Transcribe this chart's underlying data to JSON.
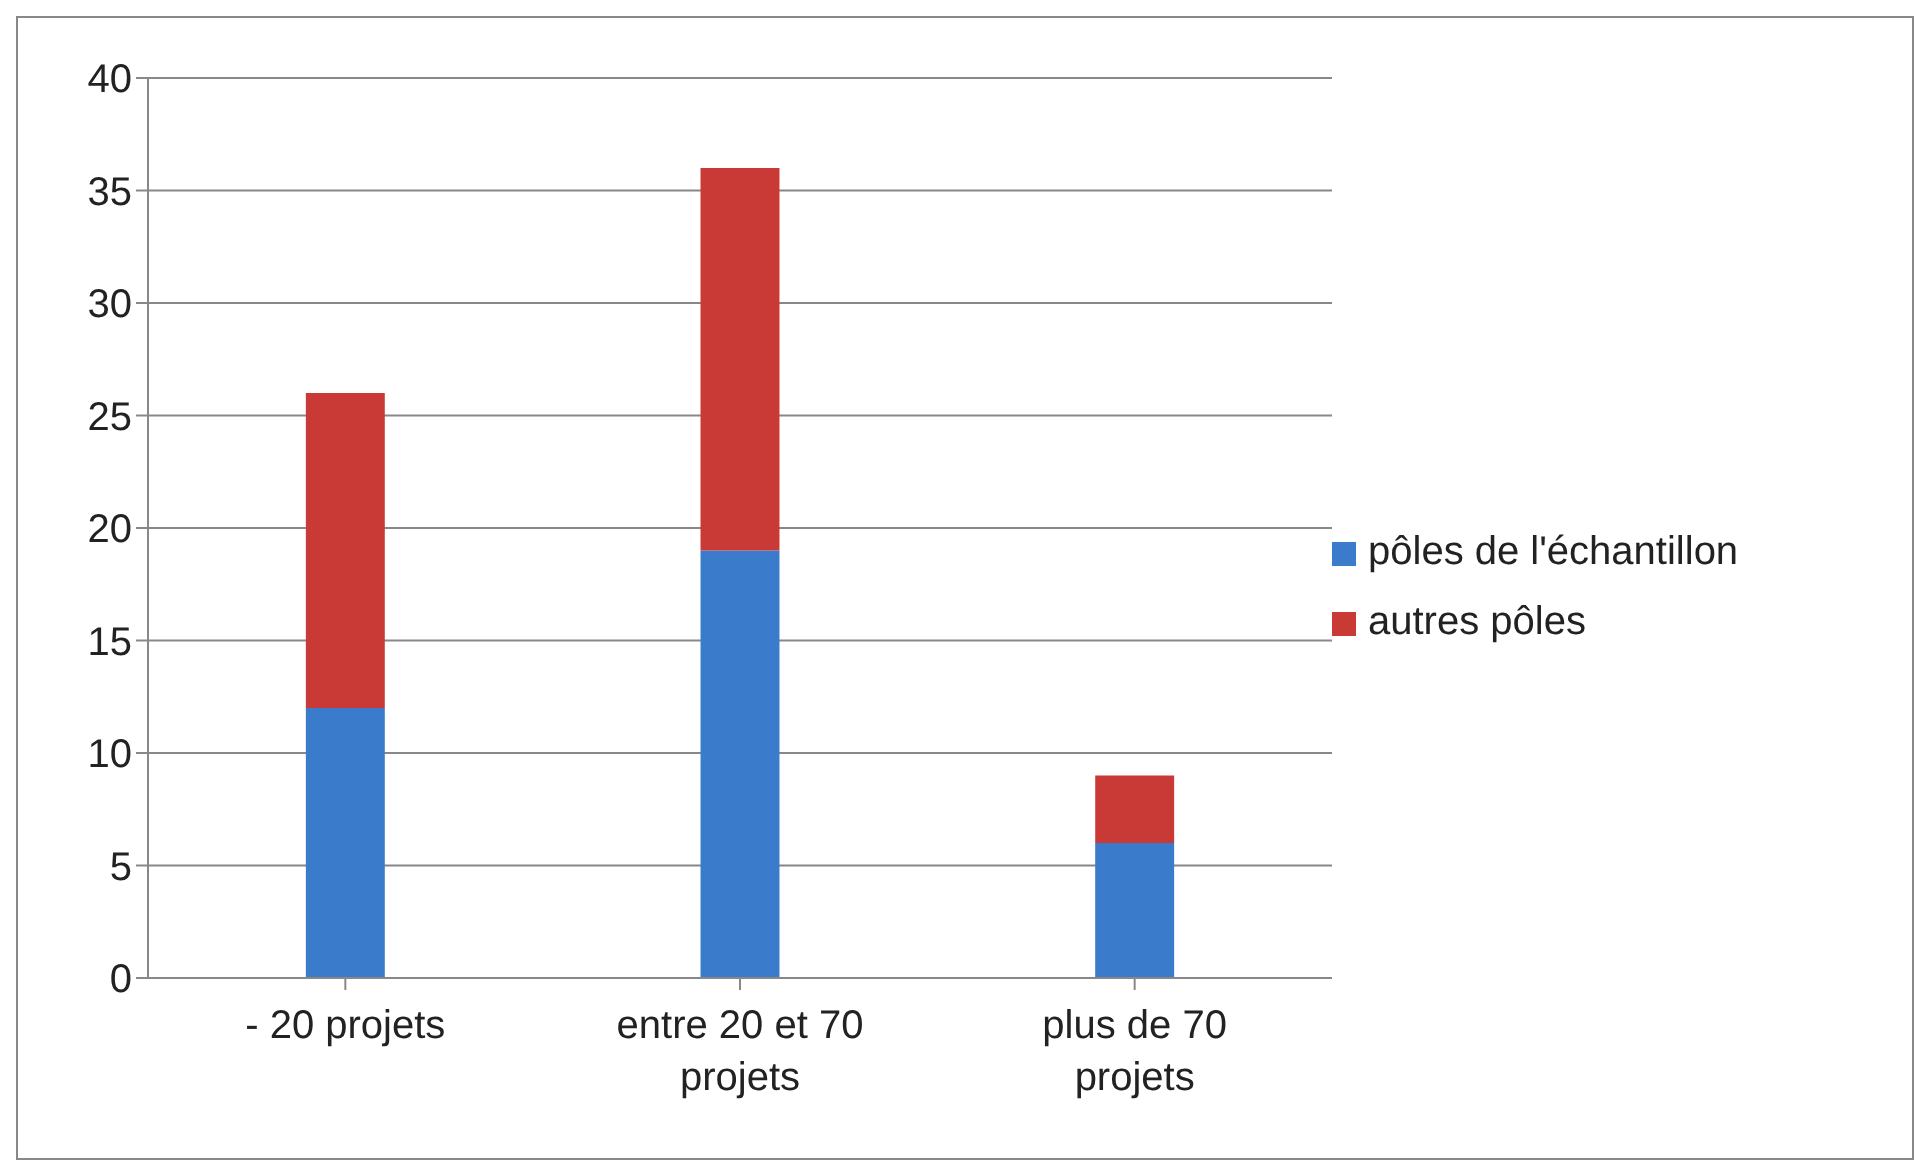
{
  "chart_data": {
    "type": "bar",
    "stacked": true,
    "categories": [
      "- 20 projets",
      "entre 20 et 70 projets",
      "plus de 70 projets"
    ],
    "series": [
      {
        "name": "pôles de l'échantillon",
        "color": "#3b7bcc",
        "values": [
          12,
          19,
          6
        ]
      },
      {
        "name": "autres pôles",
        "color": "#c93a36",
        "values": [
          14,
          17,
          3
        ]
      }
    ],
    "ylim": [
      0,
      40
    ],
    "yticks": [
      0,
      5,
      10,
      15,
      20,
      25,
      30,
      35,
      40
    ],
    "grid": "y",
    "legend": "right"
  }
}
